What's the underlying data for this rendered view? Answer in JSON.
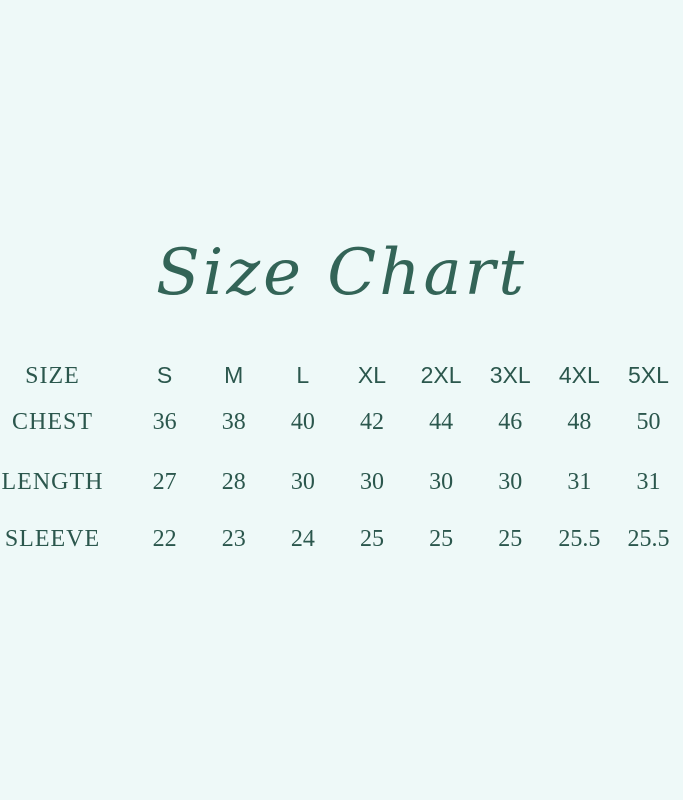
{
  "page": {
    "background_color": "#eef9f8",
    "text_color": "#2b574d"
  },
  "title": {
    "text": "Size Chart",
    "color": "#336457"
  },
  "size_table": {
    "header": {
      "row_label": "SIZE",
      "columns": [
        "S",
        "M",
        "L",
        "XL",
        "2XL",
        "3XL",
        "4XL",
        "5XL"
      ]
    },
    "rows": [
      {
        "label": "CHEST",
        "values": [
          "36",
          "38",
          "40",
          "42",
          "44",
          "46",
          "48",
          "50"
        ]
      },
      {
        "label": "LENGTH",
        "values": [
          "27",
          "28",
          "30",
          "30",
          "30",
          "30",
          "31",
          "31"
        ]
      },
      {
        "label": "SLEEVE",
        "values": [
          "22",
          "23",
          "24",
          "25",
          "25",
          "25",
          "25.5",
          "25.5"
        ]
      }
    ]
  },
  "chart_data": {
    "type": "table",
    "title": "Size Chart",
    "columns": [
      "SIZE",
      "S",
      "M",
      "L",
      "XL",
      "2XL",
      "3XL",
      "4XL",
      "5XL"
    ],
    "rows": [
      [
        "CHEST",
        36,
        38,
        40,
        42,
        44,
        46,
        48,
        50
      ],
      [
        "LENGTH",
        27,
        28,
        30,
        30,
        30,
        30,
        31,
        31
      ],
      [
        "SLEEVE",
        22,
        23,
        24,
        25,
        25,
        25,
        25.5,
        25.5
      ]
    ],
    "legend": false,
    "grid": false
  }
}
